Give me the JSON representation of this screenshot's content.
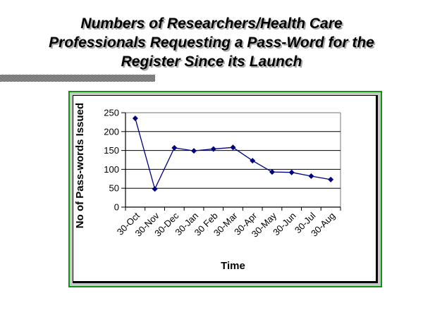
{
  "slide": {
    "title_lines": [
      "Numbers of Researchers/Health Care",
      "Professionals Requesting a Pass-Word for the",
      "Register Since its Launch"
    ]
  },
  "colors": {
    "frame_green": "#0e940e",
    "frame_gray": "#c8c8c8",
    "chart_border": "#000000",
    "plot_border_gray": "#909090",
    "gridline": "#000000",
    "line_navy": "#000080",
    "marker_navy": "#000080",
    "title_text": "#000000",
    "title_shadow": "#aaaaaa"
  },
  "chart_data": {
    "type": "line",
    "categories": [
      "30-Oct",
      "30-Nov",
      "30-Dec",
      "30-Jan",
      "30 Feb",
      "30-Mar",
      "30-Apr",
      "30-May",
      "30-Jun",
      "30-Jul",
      "30-Aug"
    ],
    "values": [
      235,
      48,
      157,
      149,
      154,
      158,
      123,
      93,
      92,
      82,
      73
    ],
    "xlabel": "Time",
    "ylabel": "No of Pass-words Issued",
    "ylim": [
      0,
      250
    ],
    "yticks": [
      0,
      50,
      100,
      150,
      200,
      250
    ],
    "grid": true,
    "legend_position": "none",
    "marker": "diamond",
    "line_color": "#000080",
    "x_tick_label_rotation": -45
  }
}
